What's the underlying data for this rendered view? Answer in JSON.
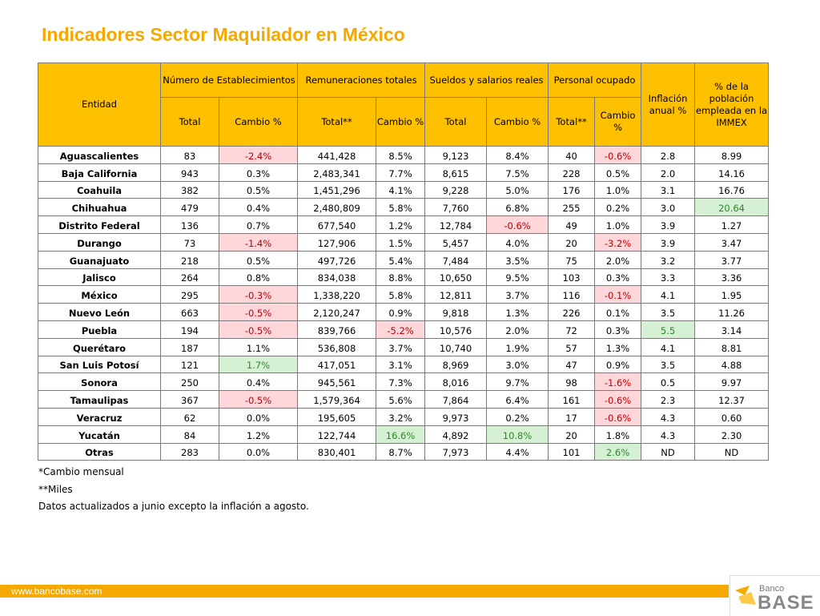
{
  "title": "Indicadores Sector Maquilador en México",
  "headers": {
    "entidad": "Entidad",
    "establecimientos": "Número de Establecimientos",
    "remuneraciones": "Remuneraciones totales",
    "sueldos": "Sueldos y salarios reales",
    "personal": "Personal ocupado",
    "inflacion": "Inflación anual %",
    "poblacion": "% de la población empleada en la IMMEX",
    "total": "Total",
    "cambio": "Cambio %",
    "total_miles": "Total**"
  },
  "rows": [
    [
      "Aguascalientes",
      "83",
      "-2.4%",
      "441,428",
      "8.5%",
      "9,123",
      "8.4%",
      "40",
      "-0.6%",
      "2.8",
      "8.99"
    ],
    [
      "Baja California",
      "943",
      "0.3%",
      "2,483,341",
      "7.7%",
      "8,615",
      "7.5%",
      "228",
      "0.5%",
      "2.0",
      "14.16"
    ],
    [
      "Coahuila",
      "382",
      "0.5%",
      "1,451,296",
      "4.1%",
      "9,228",
      "5.0%",
      "176",
      "1.0%",
      "3.1",
      "16.76"
    ],
    [
      "Chihuahua",
      "479",
      "0.4%",
      "2,480,809",
      "5.8%",
      "7,760",
      "6.8%",
      "255",
      "0.2%",
      "3.0",
      "20.64"
    ],
    [
      "Distrito Federal",
      "136",
      "0.7%",
      "677,540",
      "1.2%",
      "12,784",
      "-0.6%",
      "49",
      "1.0%",
      "3.9",
      "1.27"
    ],
    [
      "Durango",
      "73",
      "-1.4%",
      "127,906",
      "1.5%",
      "5,457",
      "4.0%",
      "20",
      "-3.2%",
      "3.9",
      "3.47"
    ],
    [
      "Guanajuato",
      "218",
      "0.5%",
      "497,726",
      "5.4%",
      "7,484",
      "3.5%",
      "75",
      "2.0%",
      "3.2",
      "3.77"
    ],
    [
      "Jalisco",
      "264",
      "0.8%",
      "834,038",
      "8.8%",
      "10,650",
      "9.5%",
      "103",
      "0.3%",
      "3.3",
      "3.36"
    ],
    [
      "México",
      "295",
      "-0.3%",
      "1,338,220",
      "5.8%",
      "12,811",
      "3.7%",
      "116",
      "-0.1%",
      "4.1",
      "1.95"
    ],
    [
      "Nuevo León",
      "663",
      "-0.5%",
      "2,120,247",
      "0.9%",
      "9,818",
      "1.3%",
      "226",
      "0.1%",
      "3.5",
      "11.26"
    ],
    [
      "Puebla",
      "194",
      "-0.5%",
      "839,766",
      "-5.2%",
      "10,576",
      "2.0%",
      "72",
      "0.3%",
      "5.5",
      "3.14"
    ],
    [
      "Querétaro",
      "187",
      "1.1%",
      "536,808",
      "3.7%",
      "10,740",
      "1.9%",
      "57",
      "1.3%",
      "4.1",
      "8.81"
    ],
    [
      "San Luis Potosí",
      "121",
      "1.7%",
      "417,051",
      "3.1%",
      "8,969",
      "3.0%",
      "47",
      "0.9%",
      "3.5",
      "4.88"
    ],
    [
      "Sonora",
      "250",
      "0.4%",
      "945,561",
      "7.3%",
      "8,016",
      "9.7%",
      "98",
      "-1.6%",
      "0.5",
      "9.97"
    ],
    [
      "Tamaulipas",
      "367",
      "-0.5%",
      "1,579,364",
      "5.6%",
      "7,864",
      "6.4%",
      "161",
      "-0.6%",
      "2.3",
      "12.37"
    ],
    [
      "Veracruz",
      "62",
      "0.0%",
      "195,605",
      "3.2%",
      "9,973",
      "0.2%",
      "17",
      "-0.6%",
      "4.3",
      "0.60"
    ],
    [
      "Yucatán",
      "84",
      "1.2%",
      "122,744",
      "16.6%",
      "4,892",
      "10.8%",
      "20",
      "1.8%",
      "4.3",
      "2.30"
    ],
    [
      "Otras",
      "283",
      "0.0%",
      "830,401",
      "8.7%",
      "7,973",
      "4.4%",
      "101",
      "2.6%",
      "ND",
      "ND"
    ]
  ],
  "highlights": {
    "negative_cells": [
      [
        0,
        2
      ],
      [
        0,
        8
      ],
      [
        4,
        6
      ],
      [
        5,
        2
      ],
      [
        5,
        8
      ],
      [
        8,
        2
      ],
      [
        8,
        8
      ],
      [
        9,
        2
      ],
      [
        10,
        2
      ],
      [
        10,
        4
      ],
      [
        13,
        8
      ],
      [
        14,
        2
      ],
      [
        14,
        8
      ],
      [
        15,
        8
      ]
    ],
    "positive_cells": [
      [
        3,
        10
      ],
      [
        10,
        9
      ],
      [
        12,
        2
      ],
      [
        16,
        4
      ],
      [
        16,
        6
      ],
      [
        17,
        8
      ]
    ]
  },
  "notes": [
    "*Cambio mensual",
    "**Miles",
    "Datos actualizados a junio excepto la inflación a agosto."
  ],
  "footer": {
    "url": "www.bancobase.com"
  },
  "logo": {
    "banco": "Banco",
    "base": "BASE"
  },
  "colors": {
    "accent": "#f5a800",
    "header_bg": "#ffc000",
    "negative_bg": "#ffd6da",
    "negative_text": "#c00000",
    "positive_bg": "#d5f0d3",
    "positive_text": "#2a8a2a"
  }
}
